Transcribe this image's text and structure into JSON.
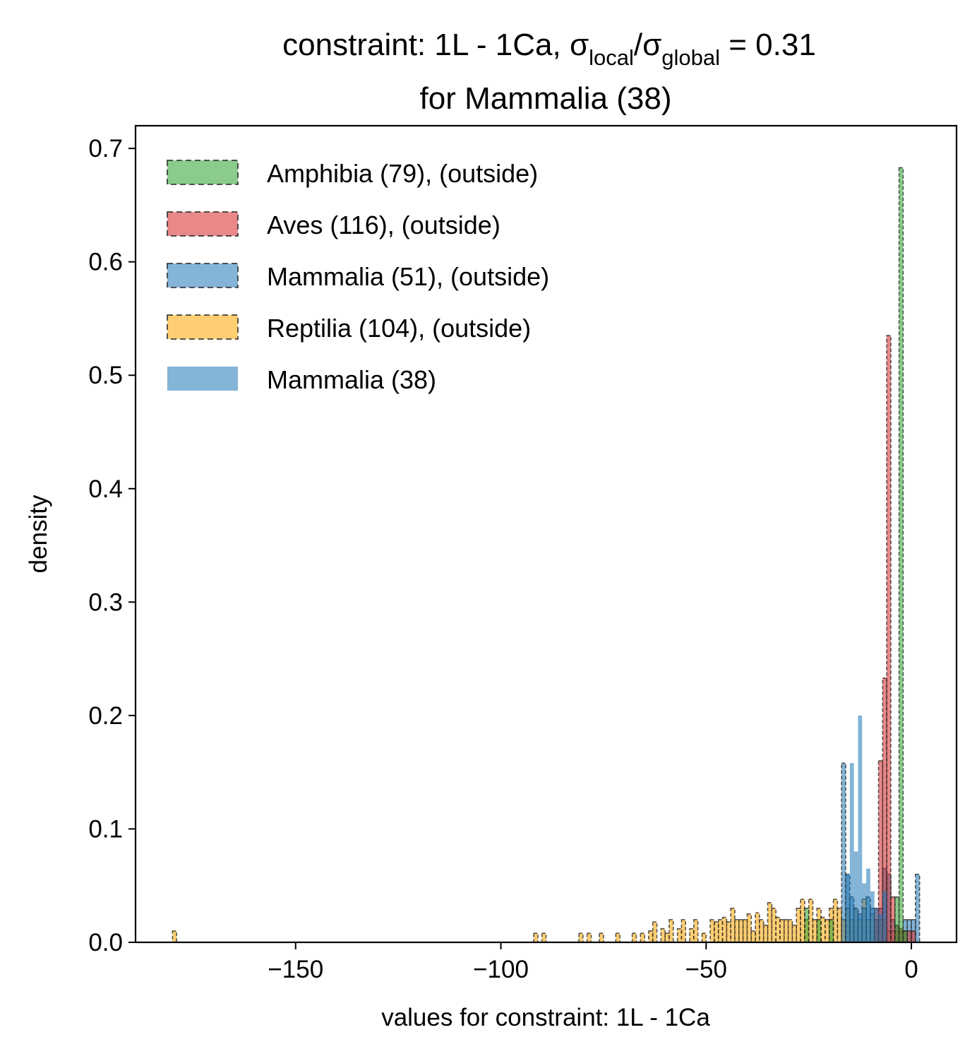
{
  "chart_data": {
    "type": "bar",
    "title": {
      "line1_prefix": "constraint: 1L - 1Ca, σ",
      "sub_local": "local",
      "slash": "/σ",
      "sub_global": "global",
      "line1_suffix": " =  0.31",
      "line2": "for Mammalia (38)"
    },
    "xlabel": "values for constraint: 1L - 1Ca",
    "ylabel": "density",
    "xlim": [
      -189,
      11
    ],
    "ylim": [
      0,
      0.72
    ],
    "xticks": [
      {
        "value": -150,
        "label": "−150"
      },
      {
        "value": -100,
        "label": "−100"
      },
      {
        "value": -50,
        "label": "−50"
      },
      {
        "value": 0,
        "label": "0"
      }
    ],
    "yticks": [
      {
        "value": 0.0,
        "label": "0.0"
      },
      {
        "value": 0.1,
        "label": "0.1"
      },
      {
        "value": 0.2,
        "label": "0.2"
      },
      {
        "value": 0.3,
        "label": "0.3"
      },
      {
        "value": 0.4,
        "label": "0.4"
      },
      {
        "value": 0.5,
        "label": "0.5"
      },
      {
        "value": 0.6,
        "label": "0.6"
      },
      {
        "value": 0.7,
        "label": "0.7"
      }
    ],
    "legend_position": "top-left",
    "series": [
      {
        "name": "Reptilia (104), (outside)",
        "color": "#ffa500",
        "style": "dashed",
        "bins": [
          [
            -180,
            0.01
          ],
          [
            -92,
            0.008
          ],
          [
            -90,
            0.008
          ],
          [
            -81,
            0.008
          ],
          [
            -79,
            0.008
          ],
          [
            -76,
            0.008
          ],
          [
            -72,
            0.008
          ],
          [
            -68,
            0.008
          ],
          [
            -66,
            0.008
          ],
          [
            -64,
            0.01
          ],
          [
            -63,
            0.018
          ],
          [
            -61,
            0.012
          ],
          [
            -60,
            0.008
          ],
          [
            -59,
            0.02
          ],
          [
            -57,
            0.012
          ],
          [
            -56,
            0.02
          ],
          [
            -54,
            0.012
          ],
          [
            -53,
            0.02
          ],
          [
            -51,
            0.008
          ],
          [
            -49,
            0.02
          ],
          [
            -48,
            0.018
          ],
          [
            -47,
            0.02
          ],
          [
            -46,
            0.022
          ],
          [
            -45,
            0.018
          ],
          [
            -44,
            0.03
          ],
          [
            -43,
            0.02
          ],
          [
            -42,
            0.02
          ],
          [
            -41,
            0.02
          ],
          [
            -40,
            0.025
          ],
          [
            -39,
            0.01
          ],
          [
            -38,
            0.026
          ],
          [
            -37,
            0.02
          ],
          [
            -36,
            0.015
          ],
          [
            -35,
            0.035
          ],
          [
            -34,
            0.03
          ],
          [
            -33,
            0.022
          ],
          [
            -32,
            0.02
          ],
          [
            -31,
            0.02
          ],
          [
            -30,
            0.02
          ],
          [
            -29,
            0.015
          ],
          [
            -28,
            0.03
          ],
          [
            -27,
            0.038
          ],
          [
            -26,
            0.02
          ],
          [
            -25,
            0.038
          ],
          [
            -24,
            0.02
          ],
          [
            -23,
            0.03
          ],
          [
            -22,
            0.022
          ],
          [
            -21,
            0.02
          ],
          [
            -20,
            0.03
          ],
          [
            -19,
            0.038
          ],
          [
            -18,
            0.03
          ],
          [
            -17,
            0.02
          ],
          [
            -16,
            0.03
          ],
          [
            -15,
            0.02
          ],
          [
            -14,
            0.03
          ],
          [
            -13,
            0.02
          ],
          [
            -12,
            0.038
          ],
          [
            -11,
            0.02
          ],
          [
            -10,
            0.025
          ],
          [
            -9,
            0.02
          ],
          [
            -8,
            0.02
          ],
          [
            -7,
            0.02
          ],
          [
            -6,
            0.01
          ],
          [
            -5,
            0.01
          ],
          [
            -4,
            0.01
          ],
          [
            -3,
            0.01
          ]
        ]
      },
      {
        "name": "Mammalia (51), (outside)",
        "color": "#1f77b4",
        "style": "dashed",
        "bins": [
          [
            -17,
            0.158
          ],
          [
            -16,
            0.06
          ],
          [
            -15,
            0.04
          ],
          [
            -14,
            0.03
          ],
          [
            -13,
            0.025
          ],
          [
            -12,
            0.03
          ],
          [
            -11,
            0.04
          ],
          [
            -10,
            0.03
          ],
          [
            -9,
            0.02
          ],
          [
            -8,
            0.03
          ],
          [
            -7,
            0.065
          ],
          [
            -6,
            0.06
          ],
          [
            -5,
            0.02
          ],
          [
            -4,
            0.015
          ],
          [
            -3,
            0.01
          ],
          [
            -2,
            0.02
          ],
          [
            -1,
            0.02
          ],
          [
            0,
            0.02
          ],
          [
            1,
            0.06
          ]
        ]
      },
      {
        "name": "Aves (116), (outside)",
        "color": "#d62728",
        "style": "dashed",
        "bins": [
          [
            -9,
            0.03
          ],
          [
            -8,
            0.16
          ],
          [
            -7,
            0.233
          ],
          [
            -6,
            0.535
          ],
          [
            -5,
            0.04
          ],
          [
            -4,
            0.015
          ],
          [
            -3,
            0.012
          ],
          [
            -2,
            0.01
          ],
          [
            -1,
            0.01
          ],
          [
            0,
            0.01
          ]
        ]
      },
      {
        "name": "Amphibia (79), (outside)",
        "color": "#2ca02c",
        "style": "dashed",
        "bins": [
          [
            -26,
            0.03
          ],
          [
            -23,
            0.02
          ],
          [
            -20,
            0.02
          ],
          [
            -4,
            0.04
          ],
          [
            -3,
            0.683
          ],
          [
            -2,
            0.01
          ]
        ]
      },
      {
        "name": "Mammalia (38)",
        "color": "#1f77b4",
        "style": "solid",
        "bins": [
          [
            -16,
            0.06
          ],
          [
            -15,
            0.158
          ],
          [
            -14,
            0.08
          ],
          [
            -13,
            0.2
          ],
          [
            -12,
            0.052
          ],
          [
            -11,
            0.065
          ],
          [
            -10,
            0.045
          ],
          [
            -9,
            0.03
          ],
          [
            -8,
            0.025
          ],
          [
            -7,
            0.045
          ]
        ]
      }
    ],
    "legend_order": [
      {
        "label": "Amphibia (79), (outside)",
        "color": "#2ca02c",
        "style": "dashed"
      },
      {
        "label": "Aves (116), (outside)",
        "color": "#d62728",
        "style": "dashed"
      },
      {
        "label": "Mammalia (51), (outside)",
        "color": "#1f77b4",
        "style": "dashed"
      },
      {
        "label": "Reptilia (104), (outside)",
        "color": "#ffa500",
        "style": "dashed"
      },
      {
        "label": "Mammalia (38)",
        "color": "#1f77b4",
        "style": "solid"
      }
    ]
  }
}
